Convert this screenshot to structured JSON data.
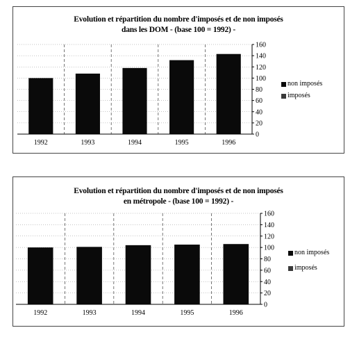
{
  "chart_data": [
    {
      "type": "bar",
      "title": [
        "Evolution et répartition du nombre d'imposés et de non imposés",
        "dans les DOM - (base 100 = 1992) -"
      ],
      "categories": [
        "1992",
        "1993",
        "1994",
        "1995",
        "1996"
      ],
      "series": [
        {
          "name": "non imposés",
          "values": [
            100,
            108,
            118,
            132,
            143
          ]
        },
        {
          "name": "imposés",
          "values": [
            0,
            0,
            0,
            0,
            0
          ]
        }
      ],
      "ylim": [
        0,
        160
      ],
      "yticks": [
        0,
        20,
        40,
        60,
        80,
        100,
        120,
        140,
        160
      ],
      "colors": {
        "non_imposes": "#0a0a0a",
        "imposes": "#3a3a3a"
      },
      "grid": true,
      "legend": "right"
    },
    {
      "type": "bar",
      "title": [
        "Evolution et répartition du nombre d'imposés et de non imposés",
        "en métropole - (base 100 = 1992) -"
      ],
      "categories": [
        "1992",
        "1993",
        "1994",
        "1995",
        "1996"
      ],
      "series": [
        {
          "name": "non imposés",
          "values": [
            100,
            101,
            104,
            105,
            106
          ]
        },
        {
          "name": "imposés",
          "values": [
            0,
            0,
            0,
            0,
            0
          ]
        }
      ],
      "ylim": [
        0,
        160
      ],
      "yticks": [
        0,
        20,
        40,
        60,
        80,
        100,
        120,
        140,
        160
      ],
      "colors": {
        "non_imposes": "#0a0a0a",
        "imposes": "#3a3a3a"
      },
      "grid": true,
      "legend": "right"
    }
  ]
}
